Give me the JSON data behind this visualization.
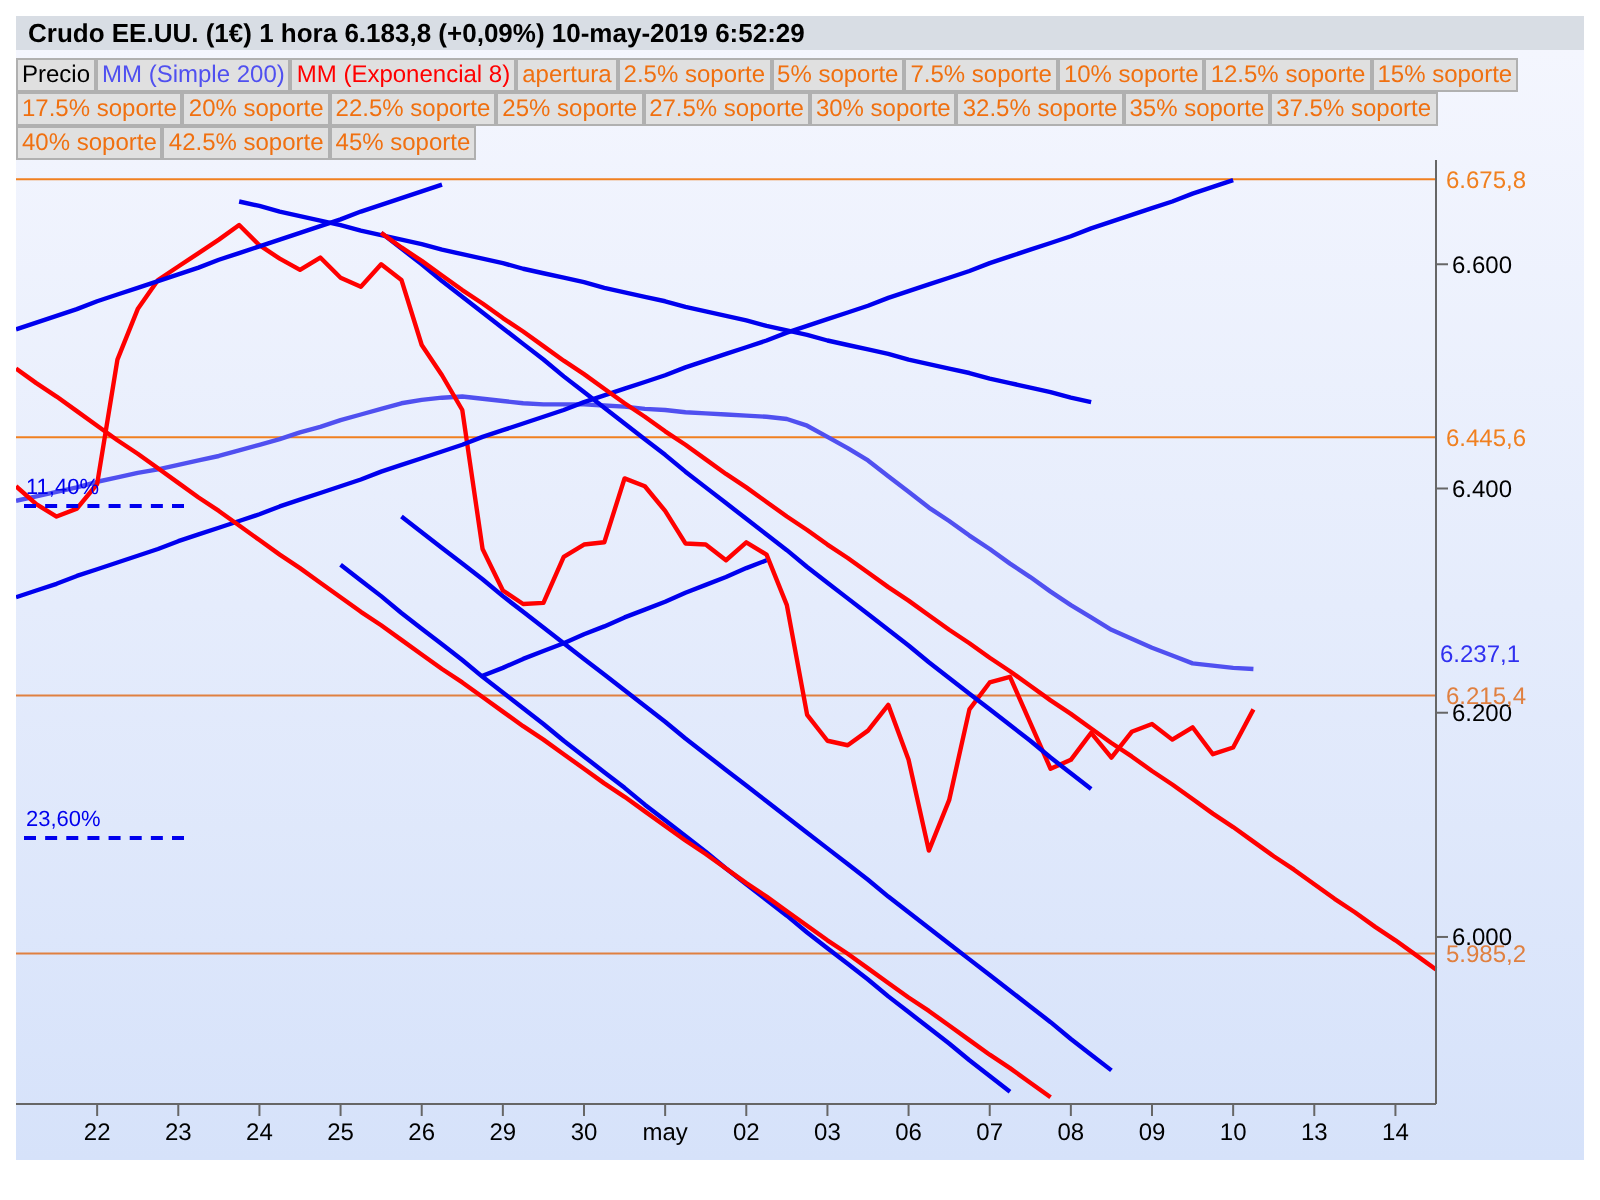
{
  "chart_data": {
    "type": "line",
    "title": "Crudo EE.UU. (1€)   1 hora   6.183,8 (+0,09%)   10-may-2019 6:52:29",
    "legend": "top",
    "categories": [
      null,
      null,
      null,
      null,
      "22",
      null,
      null,
      null,
      "23",
      null,
      null,
      null,
      "24",
      null,
      null,
      null,
      "25",
      null,
      null,
      null,
      "26",
      null,
      null,
      null,
      "29",
      null,
      null,
      null,
      "30",
      null,
      null,
      null,
      "may",
      null,
      null,
      null,
      "02",
      null,
      null,
      null,
      "03",
      null,
      null,
      null,
      "06",
      null,
      null,
      null,
      "07",
      null,
      null,
      null,
      "08",
      null,
      null,
      null,
      "09",
      null,
      null,
      null,
      "10",
      null,
      null,
      null,
      "13",
      null,
      null,
      null,
      "14",
      null,
      null
    ],
    "ylim": [
      5.851,
      6.693
    ],
    "yticks": [
      {
        "value": 6.0,
        "label": "6.000"
      },
      {
        "value": 6.2,
        "label": "6.200"
      },
      {
        "value": 6.4,
        "label": "6.400"
      },
      {
        "value": 6.6,
        "label": "6.600"
      }
    ],
    "grid": false,
    "series": [
      {
        "name": "MM (Simple 200)",
        "color": "#5050f0",
        "values": [
          6.389,
          6.393,
          6.397,
          6.401,
          6.406,
          6.41,
          6.414,
          6.417,
          6.421,
          6.425,
          6.429,
          6.434,
          6.439,
          6.444,
          6.45,
          6.455,
          6.461,
          6.466,
          6.471,
          6.476,
          6.479,
          6.481,
          6.482,
          6.48,
          6.478,
          6.476,
          6.475,
          6.475,
          6.475,
          6.474,
          6.473,
          6.471,
          6.47,
          6.468,
          6.467,
          6.466,
          6.465,
          6.464,
          6.462,
          6.456,
          6.446,
          6.436,
          6.425,
          6.411,
          6.397,
          6.383,
          6.371,
          6.358,
          6.346,
          6.333,
          6.321,
          6.308,
          6.296,
          6.285,
          6.274,
          6.266,
          6.258,
          6.251,
          6.244,
          6.242,
          6.24,
          6.239,
          null,
          null,
          null,
          null,
          null,
          null,
          null,
          null,
          null
        ]
      },
      {
        "name": "MM (Exponencial 8)",
        "color": "#ff0000",
        "values": [
          6.402,
          6.386,
          6.375,
          6.382,
          6.404,
          6.515,
          6.56,
          6.586,
          6.598,
          6.61,
          6.622,
          6.635,
          6.617,
          6.605,
          6.595,
          6.606,
          6.588,
          6.58,
          6.6,
          6.586,
          6.528,
          6.501,
          6.47,
          6.346,
          6.309,
          6.297,
          6.298,
          6.339,
          6.35,
          6.352,
          6.409,
          6.402,
          6.38,
          6.351,
          6.35,
          6.336,
          6.352,
          6.341,
          6.296,
          6.198,
          6.175,
          6.171,
          6.184,
          6.207,
          6.158,
          6.077,
          6.122,
          6.203,
          6.227,
          6.232,
          6.191,
          6.15,
          6.158,
          6.182,
          6.16,
          6.183,
          6.19,
          6.176,
          6.187,
          6.163,
          6.169,
          6.203,
          null,
          null,
          null,
          null,
          null,
          null,
          null,
          null,
          null
        ]
      },
      {
        "color": "#0000ee",
        "values": [
          6.542,
          6.548,
          6.554,
          6.56,
          6.567,
          6.573,
          6.579,
          6.585,
          6.591,
          6.597,
          6.604,
          6.61,
          6.616,
          6.622,
          6.628,
          6.634,
          6.64,
          6.647,
          6.653,
          6.659,
          6.665,
          6.671,
          null,
          null,
          null,
          null,
          null,
          null,
          null,
          null,
          null,
          null,
          null,
          null,
          null,
          null,
          null,
          null,
          null,
          null,
          null,
          null,
          null,
          null,
          null,
          null,
          null,
          null,
          null,
          null,
          null,
          null,
          null,
          null,
          null,
          null,
          null,
          null,
          null,
          null,
          null,
          null,
          null,
          null,
          null,
          null,
          null,
          null,
          null,
          null,
          null
        ]
      },
      {
        "color": "#0000ee",
        "values": [
          6.303,
          6.309,
          6.315,
          6.322,
          6.328,
          6.334,
          6.34,
          6.346,
          6.353,
          6.359,
          6.365,
          6.371,
          6.377,
          6.384,
          6.39,
          6.396,
          6.402,
          6.408,
          6.415,
          6.421,
          6.427,
          6.433,
          6.439,
          6.446,
          6.452,
          6.458,
          6.464,
          6.47,
          6.477,
          6.483,
          6.489,
          6.495,
          6.501,
          6.508,
          6.514,
          6.52,
          6.526,
          6.532,
          6.539,
          6.545,
          6.551,
          6.557,
          6.563,
          6.57,
          6.576,
          6.582,
          6.588,
          6.594,
          6.601,
          6.607,
          6.613,
          6.619,
          6.625,
          6.632,
          6.638,
          6.644,
          6.65,
          6.656,
          6.663,
          6.669,
          6.675,
          null,
          null,
          null,
          null,
          null,
          null,
          null,
          null,
          null,
          null
        ]
      },
      {
        "color": "#0000ee",
        "values": [
          null,
          null,
          null,
          null,
          null,
          null,
          null,
          null,
          null,
          null,
          null,
          6.656,
          6.652,
          6.647,
          6.643,
          6.639,
          6.635,
          6.63,
          6.626,
          6.622,
          6.618,
          6.613,
          6.609,
          6.605,
          6.601,
          6.596,
          6.592,
          6.588,
          6.584,
          6.579,
          6.575,
          6.571,
          6.567,
          6.562,
          6.558,
          6.554,
          6.55,
          6.545,
          6.541,
          6.537,
          6.532,
          6.528,
          6.524,
          6.52,
          6.515,
          6.511,
          6.507,
          6.503,
          6.498,
          6.494,
          6.49,
          6.486,
          6.481,
          6.477,
          null,
          null,
          null,
          null,
          null,
          null,
          null,
          null,
          null,
          null,
          null,
          null,
          null,
          null,
          null,
          null,
          null
        ]
      },
      {
        "color": "#0000ee",
        "values": [
          null,
          null,
          null,
          null,
          null,
          null,
          null,
          null,
          null,
          null,
          null,
          null,
          null,
          null,
          null,
          null,
          null,
          null,
          6.628,
          6.614,
          6.6,
          6.585,
          6.571,
          6.557,
          6.543,
          6.529,
          6.515,
          6.5,
          6.486,
          6.472,
          6.458,
          6.444,
          6.43,
          6.415,
          6.401,
          6.387,
          6.373,
          6.359,
          6.345,
          6.33,
          6.316,
          6.302,
          6.288,
          6.274,
          6.26,
          6.245,
          6.231,
          6.217,
          6.203,
          6.189,
          6.175,
          6.16,
          6.146,
          6.132,
          null,
          null,
          null,
          null,
          null,
          null,
          null,
          null,
          null,
          null,
          null,
          null,
          null,
          null,
          null,
          null,
          null
        ]
      },
      {
        "color": "#ff0000",
        "values": [
          null,
          null,
          null,
          null,
          null,
          null,
          null,
          null,
          null,
          null,
          null,
          null,
          null,
          null,
          null,
          null,
          null,
          null,
          6.628,
          6.615,
          6.603,
          6.59,
          6.577,
          6.565,
          6.552,
          6.54,
          6.527,
          6.514,
          6.502,
          6.489,
          6.476,
          6.464,
          6.451,
          6.439,
          6.426,
          6.413,
          6.401,
          6.388,
          6.375,
          6.363,
          6.35,
          6.338,
          6.325,
          6.312,
          6.3,
          6.287,
          6.274,
          6.262,
          6.249,
          6.237,
          6.224,
          6.211,
          6.199,
          6.186,
          6.173,
          6.161,
          6.148,
          6.136,
          6.123,
          6.11,
          6.098,
          6.085,
          6.072,
          6.06,
          6.047,
          6.034,
          6.022,
          6.009,
          5.997,
          5.984,
          5.971
        ]
      },
      {
        "color": "#0000ee",
        "values": [
          null,
          null,
          null,
          null,
          null,
          null,
          null,
          null,
          null,
          null,
          null,
          null,
          null,
          null,
          null,
          null,
          null,
          null,
          null,
          6.375,
          6.361,
          6.347,
          6.333,
          6.319,
          6.304,
          6.29,
          6.276,
          6.262,
          6.248,
          6.234,
          6.22,
          6.206,
          6.192,
          6.177,
          6.163,
          6.149,
          6.135,
          6.121,
          6.107,
          6.093,
          6.079,
          6.065,
          6.051,
          6.036,
          6.022,
          6.008,
          5.994,
          5.98,
          5.966,
          5.952,
          5.938,
          5.924,
          5.909,
          5.895,
          5.881,
          null,
          null,
          null,
          null,
          null,
          null,
          null,
          null,
          null,
          null,
          null,
          null,
          null,
          null,
          null,
          null
        ]
      },
      {
        "color": "#0000ee",
        "values": [
          null,
          null,
          null,
          null,
          null,
          null,
          null,
          null,
          null,
          null,
          null,
          null,
          null,
          null,
          null,
          null,
          6.332,
          6.318,
          6.304,
          6.289,
          6.275,
          6.261,
          6.247,
          6.232,
          6.218,
          6.204,
          6.19,
          6.175,
          6.161,
          6.147,
          6.133,
          6.118,
          6.104,
          6.09,
          6.076,
          6.061,
          6.047,
          6.033,
          6.019,
          6.004,
          5.99,
          5.976,
          5.962,
          5.947,
          5.933,
          5.919,
          5.905,
          5.89,
          5.876,
          5.862,
          null,
          null,
          null,
          null,
          null,
          null,
          null,
          null,
          null,
          null,
          null,
          null,
          null,
          null,
          null,
          null,
          null,
          null,
          null,
          null,
          null
        ]
      },
      {
        "color": "#ff0000",
        "values": [
          6.507,
          6.494,
          6.482,
          6.469,
          6.456,
          6.443,
          6.431,
          6.418,
          6.405,
          6.392,
          6.38,
          6.367,
          6.354,
          6.341,
          6.329,
          6.316,
          6.303,
          6.29,
          6.278,
          6.265,
          6.252,
          6.239,
          6.227,
          6.214,
          6.201,
          6.188,
          6.176,
          6.163,
          6.15,
          6.137,
          6.125,
          6.112,
          6.099,
          6.086,
          6.074,
          6.061,
          6.048,
          6.036,
          6.023,
          6.01,
          5.997,
          5.985,
          5.972,
          5.959,
          5.946,
          5.934,
          5.921,
          5.908,
          5.895,
          5.883,
          5.87,
          5.857,
          null,
          null,
          null,
          null,
          null,
          null,
          null,
          null,
          null,
          null,
          null,
          null,
          null,
          null,
          null,
          null,
          null,
          null,
          null
        ]
      },
      {
        "color": "#0000ee",
        "values": [
          null,
          null,
          null,
          null,
          null,
          null,
          null,
          null,
          null,
          null,
          null,
          null,
          null,
          null,
          null,
          null,
          null,
          null,
          null,
          null,
          null,
          null,
          null,
          6.233,
          6.24,
          6.248,
          6.255,
          6.262,
          6.27,
          6.277,
          6.285,
          6.292,
          6.299,
          6.307,
          6.314,
          6.321,
          6.329,
          6.336,
          null,
          null,
          null,
          null,
          null,
          null,
          null,
          null,
          null,
          null,
          null,
          null,
          null,
          null,
          null,
          null,
          null,
          null,
          null,
          null,
          null,
          null,
          null,
          null,
          null,
          null,
          null,
          null,
          null,
          null,
          null,
          null,
          null
        ]
      }
    ],
    "ref_lines": [
      {
        "axis": "y",
        "value": 6.6758,
        "label": "6.675,8",
        "color": "#f08020"
      },
      {
        "axis": "y",
        "value": 6.4456,
        "label": "6.445,6",
        "color": "#f08020"
      },
      {
        "axis": "y",
        "value": 6.2154,
        "label": "6.215,4",
        "color": "#e08040"
      },
      {
        "axis": "y",
        "value": 5.9852,
        "label": "5.985,2",
        "color": "#e08040"
      }
    ],
    "annotations": [
      "Precio",
      "apertura",
      "2.5% soporte",
      "5% soporte",
      "7.5% soporte",
      "10% soporte",
      "12.5% soporte",
      "15% soporte",
      "17.5% soporte",
      "20% soporte",
      "22.5% soporte",
      "25% soporte",
      "27.5% soporte",
      "30% soporte",
      "32.5% soporte",
      "35% soporte",
      "37.5% soporte",
      "40% soporte",
      "42.5% soporte",
      "45% soporte",
      "11,40%",
      "23,60%",
      "6.237,1"
    ]
  }
}
